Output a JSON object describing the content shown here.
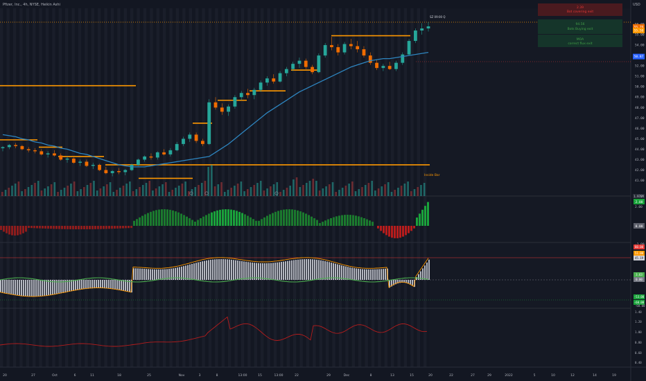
{
  "header": {
    "symbol": "Pfizer, Inc., 4h, NYSE, Heikin Ashi"
  },
  "top_right": {
    "currency": "USD"
  },
  "dashboard": [
    {
      "value": "2.39",
      "text": "Bot covering exit",
      "color": "#e53935",
      "bg": "#4a1a1f"
    },
    {
      "value": "94.56",
      "text": "Bots Buying exit",
      "color": "#43a047",
      "bg": "#15352a"
    },
    {
      "value": "MOA",
      "text": "correct flux exit",
      "color": "#43a047",
      "bg": "#15352a"
    }
  ],
  "annotations": {
    "inside_bar": "Inside Bar",
    "sz_label": "SZ 09:00 Q"
  },
  "badges": [
    {
      "text": "55.79",
      "bg": "#ef6c00",
      "price": 55.75
    },
    {
      "text": "55.50",
      "bg": "#ff9800",
      "price": 55.4
    },
    {
      "text": "50.87",
      "bg": "#2962ff",
      "price": 52.9
    }
  ],
  "price_axis": [
    "56.00",
    "55.00",
    "54.00",
    "53.00",
    "52.00",
    "51.00",
    "50.00",
    "49.00",
    "48.00",
    "47.00",
    "46.00",
    "45.00",
    "44.00",
    "43.00",
    "42.00",
    "41.00"
  ],
  "vol_badge": "1.976M",
  "osc_axis": [
    "2.00",
    "0.00",
    "-2.00"
  ],
  "osc_badges": [
    {
      "text": "2.00",
      "bg": "#1aa33b"
    },
    {
      "text": "0.00",
      "bg": "#5d606b"
    }
  ],
  "rsi_axis": [
    "60.00",
    "40.00",
    "20.00",
    "0.00",
    "-20.00",
    "-40.00",
    "-60.00"
  ],
  "rsi_badges": [
    {
      "text": "60.00",
      "bg": "#e53935"
    },
    {
      "text": "51.00",
      "bg": "#ff9800"
    },
    {
      "text": "45.19",
      "bg": "#d1d4dc"
    },
    {
      "text": "3.63",
      "bg": "#4caf50"
    },
    {
      "text": "0.00",
      "bg": "#787b86"
    },
    {
      "text": "-53.00",
      "bg": "#1aa33b"
    },
    {
      "text": "-60.00",
      "bg": "#1aa33b"
    }
  ],
  "ratio_axis": [
    "1.40",
    "1.20",
    "1.00",
    "0.80",
    "0.60",
    "0.40"
  ],
  "time_axis": [
    "20",
    "27",
    "Oct",
    "6",
    "11",
    "18",
    "25",
    "Nov",
    "3",
    "8",
    "13:00",
    "15",
    "13:00",
    "22",
    "29",
    "Dec",
    "8",
    "13",
    "15",
    "20",
    "22",
    "27",
    "29",
    "2022",
    "5",
    "10",
    "12",
    "14",
    "19"
  ],
  "chart_data": {
    "type": "candlestick",
    "series": [
      {
        "name": "Pfizer, Inc., 4h, NYSE, Heikin Ashi",
        "ohlc": [
          [
            44.1,
            44.3,
            43.8,
            44.2
          ],
          [
            44.2,
            44.5,
            44.0,
            44.4
          ],
          [
            44.4,
            44.6,
            44.1,
            44.3
          ],
          [
            44.3,
            44.4,
            43.9,
            44.0
          ],
          [
            44.0,
            44.2,
            43.7,
            43.9
          ],
          [
            43.9,
            44.1,
            43.6,
            43.8
          ],
          [
            43.8,
            44.0,
            43.4,
            43.5
          ],
          [
            43.5,
            43.8,
            43.2,
            43.6
          ],
          [
            43.6,
            43.9,
            43.3,
            43.4
          ],
          [
            43.4,
            43.6,
            42.9,
            43.0
          ],
          [
            43.0,
            43.3,
            42.7,
            43.1
          ],
          [
            43.1,
            43.2,
            42.6,
            42.7
          ],
          [
            42.7,
            43.0,
            42.4,
            42.8
          ],
          [
            42.8,
            43.0,
            42.3,
            42.4
          ],
          [
            42.4,
            42.7,
            42.1,
            42.5
          ],
          [
            42.5,
            42.6,
            41.9,
            42.0
          ],
          [
            42.0,
            42.3,
            41.6,
            41.7
          ],
          [
            41.7,
            42.0,
            41.4,
            41.9
          ],
          [
            41.9,
            42.2,
            41.6,
            41.8
          ],
          [
            41.8,
            42.1,
            41.5,
            42.0
          ],
          [
            42.0,
            42.6,
            41.9,
            42.5
          ],
          [
            42.5,
            43.1,
            42.4,
            43.0
          ],
          [
            43.0,
            43.4,
            42.8,
            43.3
          ],
          [
            43.3,
            43.6,
            43.0,
            43.2
          ],
          [
            43.2,
            43.8,
            43.0,
            43.7
          ],
          [
            43.7,
            44.0,
            43.4,
            43.5
          ],
          [
            43.5,
            44.1,
            43.3,
            43.9
          ],
          [
            43.9,
            44.7,
            43.8,
            44.5
          ],
          [
            44.5,
            45.2,
            44.3,
            45.0
          ],
          [
            45.0,
            45.6,
            44.7,
            45.4
          ],
          [
            45.4,
            45.6,
            44.6,
            44.8
          ],
          [
            44.8,
            45.0,
            44.3,
            44.5
          ],
          [
            44.5,
            48.8,
            44.4,
            48.5
          ],
          [
            48.5,
            49.0,
            47.8,
            48.0
          ],
          [
            48.0,
            48.4,
            47.3,
            47.6
          ],
          [
            47.6,
            48.3,
            47.2,
            48.1
          ],
          [
            48.1,
            49.2,
            47.9,
            49.0
          ],
          [
            49.0,
            49.6,
            48.7,
            49.4
          ],
          [
            49.4,
            49.8,
            48.9,
            49.2
          ],
          [
            49.2,
            49.9,
            48.8,
            49.7
          ],
          [
            49.7,
            50.6,
            49.5,
            50.4
          ],
          [
            50.4,
            51.0,
            50.1,
            50.8
          ],
          [
            50.8,
            51.2,
            50.3,
            50.5
          ],
          [
            50.5,
            51.5,
            50.4,
            51.3
          ],
          [
            51.3,
            51.9,
            51.0,
            51.7
          ],
          [
            51.7,
            52.4,
            51.5,
            52.2
          ],
          [
            52.2,
            52.8,
            51.8,
            52.5
          ],
          [
            52.5,
            52.7,
            51.7,
            51.9
          ],
          [
            51.9,
            52.1,
            51.2,
            51.4
          ],
          [
            51.4,
            53.2,
            51.3,
            53.0
          ],
          [
            53.0,
            54.2,
            52.8,
            54.0
          ],
          [
            54.0,
            54.8,
            53.5,
            53.8
          ],
          [
            53.8,
            54.1,
            53.0,
            53.3
          ],
          [
            53.3,
            54.3,
            53.1,
            54.1
          ],
          [
            54.1,
            54.6,
            53.6,
            53.9
          ],
          [
            53.9,
            54.4,
            53.3,
            53.6
          ],
          [
            53.6,
            53.9,
            52.8,
            53.0
          ],
          [
            53.0,
            53.3,
            52.1,
            52.3
          ],
          [
            52.3,
            52.6,
            51.6,
            51.8
          ],
          [
            51.8,
            52.2,
            51.5,
            52.0
          ],
          [
            52.0,
            52.4,
            51.6,
            51.7
          ],
          [
            51.7,
            52.5,
            51.5,
            52.3
          ],
          [
            52.3,
            53.3,
            52.1,
            53.1
          ],
          [
            53.1,
            54.6,
            53.0,
            54.4
          ],
          [
            54.4,
            55.6,
            54.2,
            55.4
          ],
          [
            55.4,
            56.1,
            55.0,
            55.6
          ],
          [
            55.6,
            56.2,
            55.3,
            55.8
          ]
        ]
      },
      {
        "name": "MA",
        "values": [
          45.4,
          45.3,
          45.2,
          45.0,
          44.9,
          44.7,
          44.6,
          44.4,
          44.3,
          44.1,
          44.0,
          43.8,
          43.6,
          43.5,
          43.3,
          43.1,
          42.9,
          42.7,
          42.5,
          42.4,
          42.3,
          42.3,
          42.3,
          42.4,
          42.5,
          42.6,
          42.7,
          42.8,
          42.9,
          43.0,
          43.1,
          43.2,
          43.3,
          43.7,
          44.1,
          44.5,
          45.0,
          45.5,
          46.0,
          46.5,
          47.0,
          47.5,
          47.9,
          48.3,
          48.7,
          49.1,
          49.5,
          49.8,
          50.1,
          50.4,
          50.7,
          51.0,
          51.3,
          51.6,
          51.9,
          52.1,
          52.3,
          52.5,
          52.6,
          52.7,
          52.7,
          52.8,
          52.9,
          53.0,
          53.1,
          53.2,
          53.3
        ]
      }
    ],
    "levels": [
      50.1,
      44.9,
      44.2,
      43.3,
      42.5,
      41.2,
      46.5,
      48.7,
      49.6,
      51.6,
      54.9
    ],
    "ylim": [
      40.5,
      57.0
    ]
  }
}
